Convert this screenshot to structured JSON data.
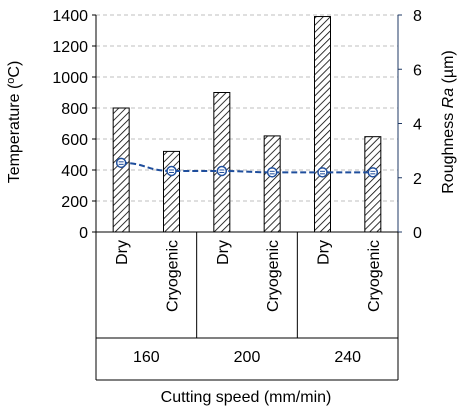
{
  "chart_data": {
    "type": "bar",
    "title": "",
    "categories": [
      "Dry",
      "Cryogenic",
      "Dry",
      "Cryogenic",
      "Dry",
      "Cryogenic"
    ],
    "groups": [
      {
        "label": "160",
        "span": 2
      },
      {
        "label": "200",
        "span": 2
      },
      {
        "label": "240",
        "span": 2
      }
    ],
    "xlabel": "Cutting speed (mm/min)",
    "ylabel": "Temperature (",
    "ylabel_super": "o",
    "ylabel_end": "C)",
    "y2label_prefix": "Roughness ",
    "y2label_italic": "Ra",
    "y2label_suffix": " (µm)",
    "ylim": [
      0,
      1400
    ],
    "yticks": [
      0,
      200,
      400,
      600,
      800,
      1000,
      1200,
      1400
    ],
    "y2lim": [
      0,
      8
    ],
    "y2ticks": [
      0,
      2,
      4,
      6,
      8
    ],
    "grid": true,
    "series": [
      {
        "kind": "bar",
        "axis": "left",
        "pattern": "diagonal-hatch",
        "values": [
          800,
          520,
          900,
          620,
          1390,
          615
        ]
      },
      {
        "kind": "line",
        "axis": "right",
        "style": "dashed",
        "marker": "circle",
        "color": "#1f4e9c",
        "values": [
          2.55,
          2.25,
          2.25,
          2.2,
          2.2,
          2.2
        ]
      }
    ]
  }
}
